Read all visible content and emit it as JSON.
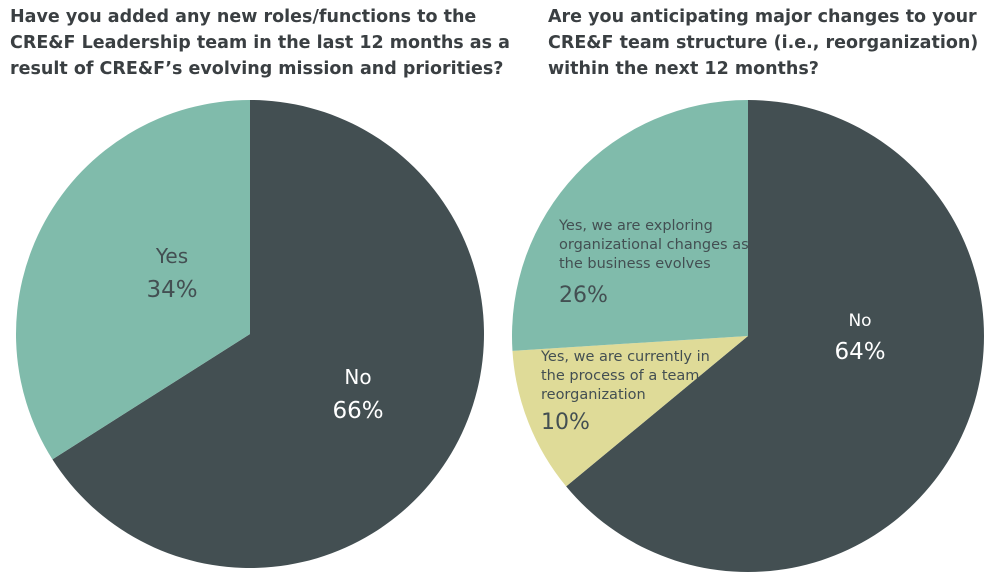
{
  "charts": [
    {
      "question_lines": [
        "Have you added any new roles/functions to the",
        "CRE&F Leadership team in the last 12 months as a",
        "result of CRE&F’s evolving mission and priorities?"
      ]
    },
    {
      "question_lines": [
        "Are you anticipating major changes to your",
        "CRE&F team structure (i.e., reorganization)",
        "within the next 12 months?"
      ]
    }
  ],
  "colors": {
    "dark": "#434f52",
    "teal": "#80bbab",
    "yellow": "#dfdb98",
    "text_dark": "#434f52",
    "text_light": "#ffffff"
  },
  "chart_data": [
    {
      "type": "pie",
      "title": "Have you added any new roles/functions to the CRE&F Leadership team in the last 12 months as a result of CRE&F’s evolving mission and priorities?",
      "slices": [
        {
          "label": "No",
          "value": 66,
          "value_label": "66%",
          "color": "#434f52"
        },
        {
          "label": "Yes",
          "value": 34,
          "value_label": "34%",
          "color": "#80bbab"
        }
      ]
    },
    {
      "type": "pie",
      "title": "Are you anticipating major changes to your CRE&F team structure (i.e., reorganization) within the next 12 months?",
      "slices": [
        {
          "label": "No",
          "value": 64,
          "value_label": "64%",
          "color": "#434f52"
        },
        {
          "label": "Yes, we are currently in the process of a team reorganization",
          "label_lines": [
            "Yes, we are currently in",
            "the process of a team",
            "reorganization"
          ],
          "value": 10,
          "value_label": "10%",
          "color": "#dfdb98"
        },
        {
          "label": "Yes, we are exploring organizational changes as the business evolves",
          "label_lines": [
            "Yes, we are exploring",
            "organizational changes as",
            "the business evolves"
          ],
          "value": 26,
          "value_label": "26%",
          "color": "#80bbab"
        }
      ]
    }
  ]
}
